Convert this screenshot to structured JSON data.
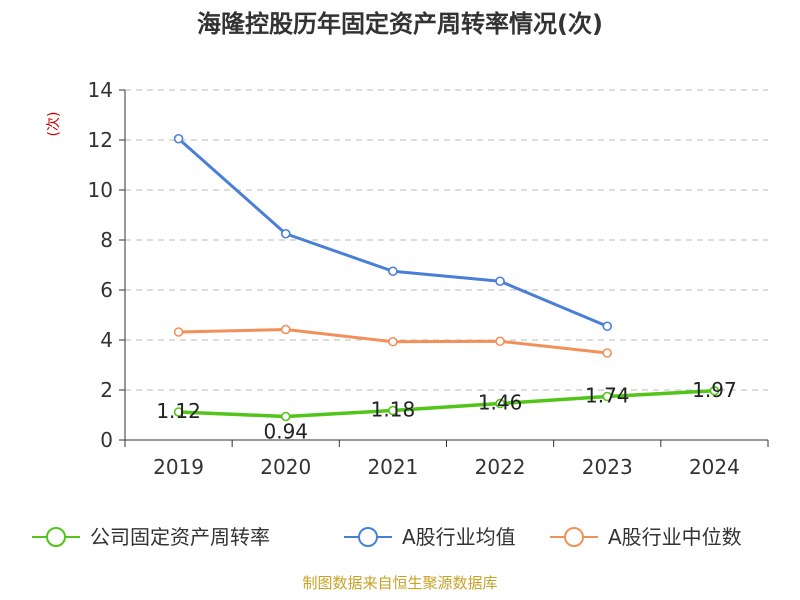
{
  "chart_data": {
    "type": "line",
    "title": "海隆控股历年固定资产周转率情况(次)",
    "ylabel": "(次)",
    "xlabel": "",
    "categories": [
      "2019",
      "2020",
      "2021",
      "2022",
      "2023",
      "2024"
    ],
    "ylim": [
      0,
      14
    ],
    "yticks": [
      0,
      2,
      4,
      6,
      8,
      10,
      12,
      14
    ],
    "grid": true,
    "legend_position": "bottom",
    "series": [
      {
        "name": "公司固定资产周转率",
        "color": "#52c41a",
        "values": [
          1.12,
          0.94,
          1.18,
          1.46,
          1.74,
          1.97
        ],
        "labels": [
          "1.12",
          "0.94",
          "1.18",
          "1.46",
          "1.74",
          "1.97"
        ]
      },
      {
        "name": "A股行业均值",
        "color": "#4a7fd8",
        "values": [
          12.05,
          8.25,
          6.75,
          6.35,
          4.55,
          null
        ]
      },
      {
        "name": "A股行业中位数",
        "color": "#f2905a",
        "values": [
          4.32,
          4.42,
          3.93,
          3.95,
          3.48,
          null
        ]
      }
    ],
    "source": "制图数据来自恒生聚源数据库"
  }
}
